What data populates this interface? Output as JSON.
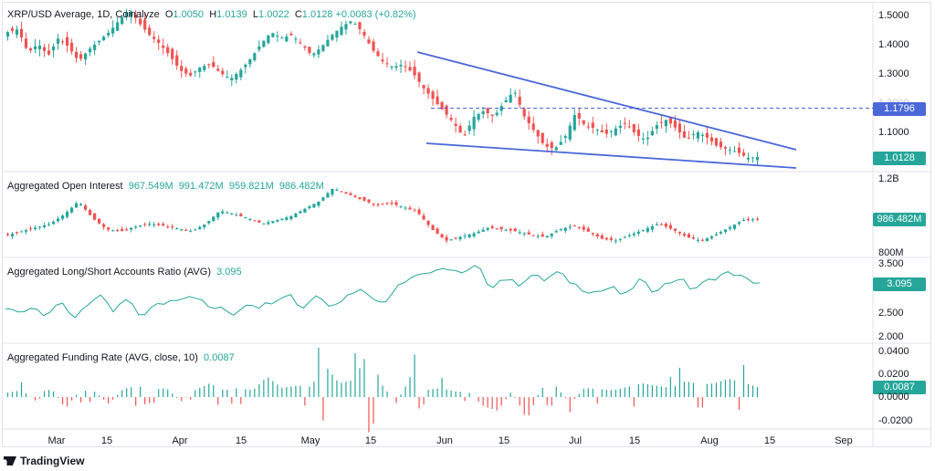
{
  "colors": {
    "up": "#26a69a",
    "down": "#ef5350",
    "line": "#4a68d8",
    "tag_blue": "#4a68d8",
    "tag_green": "#26a69a"
  },
  "header": {
    "symbol": "XRP/USD Average, 1D, Coinalyze",
    "o_label": "O",
    "o": "1.0050",
    "h_label": "H",
    "h": "1.0139",
    "l_label": "L",
    "l": "1.0022",
    "c_label": "C",
    "c": "1.0128",
    "change": "+0.0083 (+0.82%)"
  },
  "panes": {
    "oi": {
      "title": "Aggregated Open Interest",
      "values": [
        "967.549M",
        "991.472M",
        "959.821M",
        "986.482M"
      ],
      "tag": "986.482M",
      "top_tick": "1.2B",
      "bottom_tick": "800M"
    },
    "ls": {
      "title": "Aggregated Long/Short Accounts Ratio (AVG)",
      "value": "3.095",
      "tag": "3.095",
      "ticks": [
        "3.500",
        "2.500",
        "2.000"
      ]
    },
    "fr": {
      "title": "Aggregated Funding Rate (AVG, close, 10)",
      "value": "0.0087",
      "tag": "0.0087",
      "ticks": [
        "0.0400",
        "0.0200",
        "0.0000",
        "-0.0200"
      ]
    }
  },
  "price_axis": {
    "ticks": [
      "1.5000",
      "1.4000",
      "1.3000",
      "1.2000",
      "1.1000"
    ],
    "level_tag": "1.1796",
    "last_tag": "1.0128"
  },
  "x_axis": [
    "Mar",
    "15",
    "Apr",
    "15",
    "May",
    "15",
    "Jun",
    "15",
    "Jul",
    "15",
    "Aug",
    "15",
    "Sep"
  ],
  "brand": "TradingView",
  "chart_data": [
    {
      "type": "candlestick",
      "title": "XRP/USD Average, 1D, Coinalyze",
      "ylim": [
        0.96,
        1.56
      ],
      "y_ticks": [
        1.5,
        1.4,
        1.3,
        1.2,
        1.1
      ],
      "x_labels": [
        "Mar",
        "15",
        "Apr",
        "15",
        "May",
        "15",
        "Jun",
        "15",
        "Jul",
        "15",
        "Aug",
        "15",
        "Sep"
      ],
      "last": {
        "open": 1.005,
        "high": 1.0139,
        "low": 1.0022,
        "close": 1.0128
      },
      "close_path": [
        1.44,
        1.45,
        1.37,
        1.4,
        1.36,
        1.42,
        1.39,
        1.34,
        1.38,
        1.41,
        1.44,
        1.48,
        1.52,
        1.47,
        1.43,
        1.4,
        1.36,
        1.31,
        1.29,
        1.32,
        1.33,
        1.3,
        1.28,
        1.31,
        1.35,
        1.4,
        1.44,
        1.42,
        1.43,
        1.4,
        1.36,
        1.39,
        1.43,
        1.46,
        1.48,
        1.44,
        1.38,
        1.34,
        1.32,
        1.33,
        1.3,
        1.25,
        1.21,
        1.17,
        1.13,
        1.08,
        1.15,
        1.17,
        1.15,
        1.2,
        1.24,
        1.15,
        1.1,
        1.05,
        1.04,
        1.08,
        1.16,
        1.12,
        1.11,
        1.09,
        1.11,
        1.13,
        1.09,
        1.07,
        1.12,
        1.14,
        1.11,
        1.07,
        1.1,
        1.08,
        1.05,
        1.04,
        1.03,
        1.01,
        1.0128
      ],
      "annotations": {
        "horizontal_level": 1.1796,
        "falling_wedge": true
      }
    },
    {
      "type": "candlestick",
      "title": "Aggregated Open Interest",
      "ylim": [
        800,
        1200
      ],
      "units": "M",
      "values_shown": [
        967.549,
        991.472,
        959.821,
        986.482
      ],
      "close_path": [
        900,
        920,
        940,
        960,
        1010,
        1080,
        990,
        930,
        920,
        945,
        960,
        950,
        935,
        920,
        960,
        1030,
        1010,
        990,
        960,
        980,
        1000,
        1040,
        1080,
        1150,
        1120,
        1090,
        1060,
        1070,
        1050,
        1020,
        930,
        870,
        890,
        910,
        940,
        930,
        920,
        900,
        890,
        930,
        950,
        920,
        880,
        870,
        900,
        930,
        960,
        930,
        890,
        870,
        900,
        940,
        980,
        986.482
      ]
    },
    {
      "type": "line",
      "title": "Aggregated Long/Short Accounts Ratio (AVG)",
      "ylim": [
        2.0,
        3.5
      ],
      "last": 3.095,
      "values": [
        2.55,
        2.5,
        2.6,
        2.45,
        2.7,
        2.35,
        2.65,
        2.8,
        2.5,
        2.75,
        2.4,
        2.6,
        2.7,
        2.8,
        2.85,
        2.6,
        2.55,
        2.45,
        2.7,
        2.6,
        2.75,
        2.9,
        2.55,
        2.85,
        2.65,
        2.75,
        2.95,
        2.9,
        2.6,
        3.05,
        3.2,
        3.3,
        3.3,
        3.4,
        3.25,
        3.45,
        3.0,
        3.2,
        3.05,
        3.25,
        3.15,
        3.3,
        3.1,
        2.95,
        2.9,
        3.0,
        2.8,
        3.15,
        2.95,
        3.05,
        3.2,
        2.95,
        3.1,
        3.25,
        3.3,
        3.15,
        3.095
      ]
    },
    {
      "type": "bar",
      "title": "Aggregated Funding Rate (AVG, close, 10)",
      "ylim": [
        -0.025,
        0.045
      ],
      "last": 0.0087,
      "values": [
        0.004,
        0.006,
        -0.004,
        0.008,
        -0.01,
        0.006,
        0.005,
        -0.006,
        0.007,
        0.01,
        0.006,
        0.008,
        -0.004,
        0.006,
        0.012,
        0.006,
        0.008,
        0.006,
        0.018,
        0.008,
        0.01,
        0.009,
        0.028,
        0.012,
        0.015,
        0.04,
        0.01,
        -0.006,
        0.02,
        0.006,
        0.008,
        0.005,
        0.004,
        -0.008,
        -0.012,
        0.006,
        -0.02,
        0.008,
        0.01,
        -0.006,
        0.008,
        0.007,
        0.006,
        0.009,
        0.012,
        0.01,
        0.008,
        0.014,
        0.011,
        0.012,
        0.016,
        0.013,
        0.0087
      ]
    }
  ]
}
